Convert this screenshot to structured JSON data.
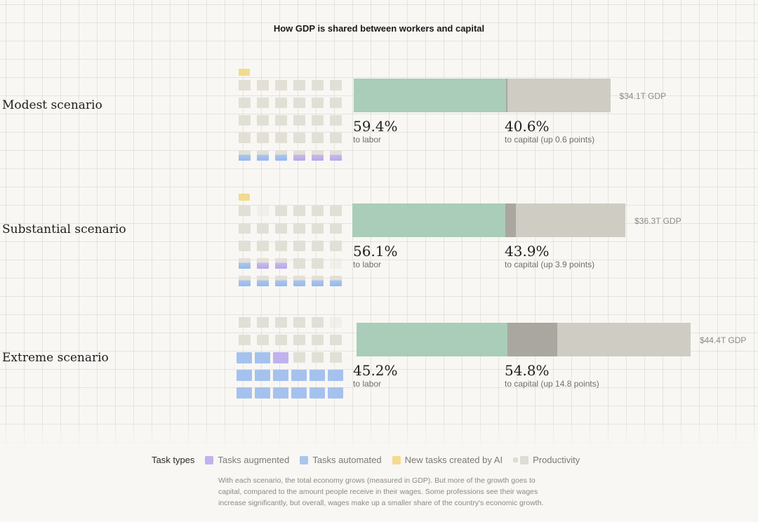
{
  "title": "How GDP is shared between workers and capital",
  "chart_data": {
    "type": "bar",
    "stacked": true,
    "orientation": "horizontal",
    "title": "How GDP is shared between workers and capital",
    "categories": [
      "Modest scenario",
      "Substantial scenario",
      "Extreme scenario"
    ],
    "series": [
      {
        "name": "to labor",
        "values": [
          59.4,
          56.1,
          45.2
        ],
        "color": "#a9cdb8"
      },
      {
        "name": "to capital",
        "values": [
          40.6,
          43.9,
          54.8
        ],
        "color": "#cfccc4"
      }
    ],
    "scenarios": [
      {
        "name": "Modest scenario",
        "gdp_label": "$34.1T GDP",
        "gdp_trillions": 34.1,
        "labor_pct": 59.4,
        "capital_pct": 40.6,
        "capital_increase_points": 0.6,
        "labor_label": "59.4%",
        "labor_sub": "to labor",
        "capital_label": "40.6%",
        "capital_sub": "to capital (up 0.6 points)",
        "waffle": {
          "rows": [
            [
              "productivity",
              "productivity",
              "productivity",
              "productivity",
              "productivity",
              "productivity"
            ],
            [
              "productivity",
              "productivity",
              "productivity",
              "productivity",
              "productivity",
              "productivity"
            ],
            [
              "productivity",
              "productivity",
              "productivity",
              "productivity",
              "productivity",
              "productivity"
            ],
            [
              "productivity",
              "productivity",
              "productivity",
              "productivity",
              "productivity",
              "productivity"
            ],
            [
              "automated",
              "automated",
              "automated",
              "augmented",
              "augmented",
              "augmented"
            ]
          ],
          "new_tasks": 1
        }
      },
      {
        "name": "Substantial scenario",
        "gdp_label": "$36.3T GDP",
        "gdp_trillions": 36.3,
        "labor_pct": 56.1,
        "capital_pct": 43.9,
        "capital_increase_points": 3.9,
        "labor_label": "56.1%",
        "labor_sub": "to labor",
        "capital_label": "43.9%",
        "capital_sub": "to capital (up 3.9 points)",
        "waffle": {
          "rows": [
            [
              "productivity",
              "empty",
              "productivity",
              "productivity",
              "productivity",
              "productivity"
            ],
            [
              "productivity",
              "productivity",
              "productivity",
              "productivity",
              "productivity",
              "productivity"
            ],
            [
              "productivity",
              "productivity",
              "productivity",
              "productivity",
              "productivity",
              "productivity"
            ],
            [
              "automated",
              "augmented",
              "augmented",
              "productivity",
              "productivity",
              "empty"
            ],
            [
              "automated",
              "automated",
              "automated",
              "automated",
              "automated",
              "automated"
            ]
          ],
          "new_tasks": 1
        }
      },
      {
        "name": "Extreme scenario",
        "gdp_label": "$44.4T GDP",
        "gdp_trillions": 44.4,
        "labor_pct": 45.2,
        "capital_pct": 54.8,
        "capital_increase_points": 14.8,
        "labor_label": "45.2%",
        "labor_sub": "to labor",
        "capital_label": "54.8%",
        "capital_sub": "to capital (up 14.8 points)",
        "waffle": {
          "rows": [
            [
              "productivity",
              "productivity",
              "productivity",
              "productivity",
              "productivity",
              "empty"
            ],
            [
              "productivity",
              "productivity",
              "productivity",
              "productivity",
              "productivity",
              "productivity"
            ],
            [
              "full-automated",
              "full-automated",
              "full-augmented",
              "productivity",
              "productivity",
              "productivity"
            ],
            [
              "full-automated",
              "full-automated",
              "full-automated",
              "full-automated",
              "full-automated",
              "full-automated"
            ],
            [
              "full-automated",
              "full-automated",
              "full-automated",
              "full-automated",
              "full-automated",
              "full-automated"
            ]
          ],
          "new_tasks": 0
        }
      }
    ]
  },
  "legend": {
    "title": "Task types",
    "items": [
      {
        "label": "Tasks augmented",
        "color": "#c1b1ee"
      },
      {
        "label": "Tasks automated",
        "color": "#a9c6ef"
      },
      {
        "label": "New tasks created by AI",
        "color": "#f3db8e"
      },
      {
        "label": "Productivity",
        "color": "#dedcd3"
      }
    ]
  },
  "note": "With each scenario, the total economy grows (measured in GDP). But more of the growth goes to capital, compared to the amount people receive in their wages. Some professions see their wages increase significantly, but overall, wages make up a smaller share of the country's economic growth."
}
